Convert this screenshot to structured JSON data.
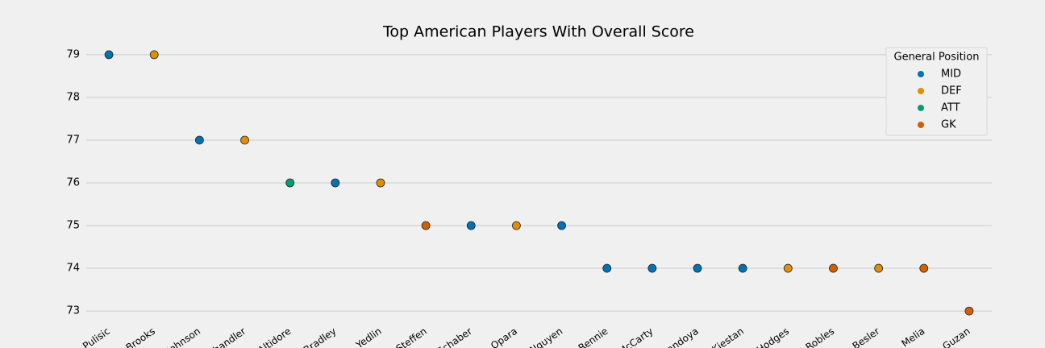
{
  "chart_data": {
    "type": "scatter",
    "title": "Top American Players With Overall Score",
    "categories": [
      "Pulisic",
      "Brooks",
      "Johnson",
      "Chandler",
      "Altidore",
      "Bradley",
      "Yedlin",
      "Steffen",
      "Schaber",
      "Opara",
      "Nguyen",
      "Rennie",
      "McCarty",
      "Sandoya",
      "Kiestan",
      "Hodges",
      "Robles",
      "Besler",
      "Melia",
      "Guzan"
    ],
    "legend_title": "General Position",
    "legend": "upper right",
    "grid": true,
    "ylim": [
      72.7,
      79.3
    ],
    "yticks": [
      73,
      74,
      75,
      76,
      77,
      78,
      79
    ],
    "series": [
      {
        "name": "MID",
        "color": "#0173b2",
        "values": [
          79,
          null,
          77,
          null,
          null,
          76,
          null,
          null,
          75,
          null,
          75,
          74,
          74,
          74,
          74,
          null,
          null,
          null,
          null,
          null
        ]
      },
      {
        "name": "DEF",
        "color": "#de8f05",
        "values": [
          null,
          79,
          null,
          77,
          null,
          null,
          76,
          null,
          null,
          75,
          null,
          null,
          null,
          null,
          null,
          74,
          null,
          74,
          null,
          null
        ]
      },
      {
        "name": "ATT",
        "color": "#029e73",
        "values": [
          null,
          null,
          null,
          null,
          76,
          null,
          null,
          null,
          null,
          null,
          null,
          null,
          null,
          null,
          null,
          null,
          null,
          null,
          null,
          null
        ]
      },
      {
        "name": "GK",
        "color": "#d55e00",
        "values": [
          null,
          null,
          null,
          null,
          null,
          null,
          null,
          75,
          null,
          null,
          null,
          null,
          null,
          null,
          null,
          null,
          74,
          null,
          74,
          73
        ]
      }
    ]
  }
}
